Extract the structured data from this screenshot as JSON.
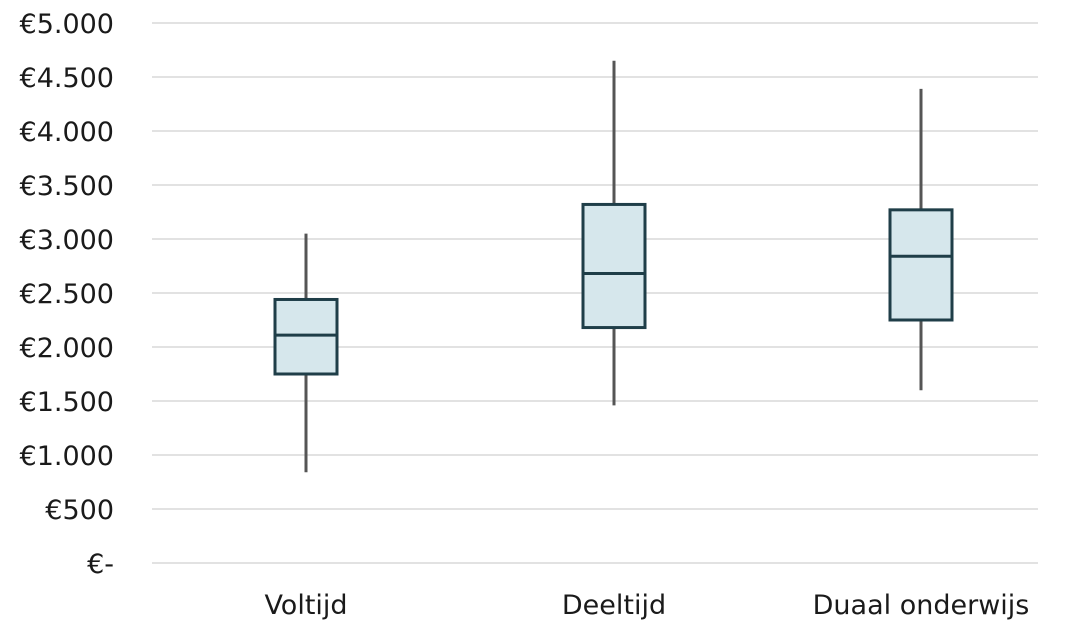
{
  "chart_data": {
    "type": "boxplot",
    "title": "",
    "xlabel": "",
    "ylabel": "",
    "ylim": [
      0,
      5000
    ],
    "grid": true,
    "y_ticks": [
      {
        "value": 0,
        "label": "€-"
      },
      {
        "value": 500,
        "label": "€500"
      },
      {
        "value": 1000,
        "label": "€1.000"
      },
      {
        "value": 1500,
        "label": "€1.500"
      },
      {
        "value": 2000,
        "label": "€2.000"
      },
      {
        "value": 2500,
        "label": "€2.500"
      },
      {
        "value": 3000,
        "label": "€3.000"
      },
      {
        "value": 3500,
        "label": "€3.500"
      },
      {
        "value": 4000,
        "label": "€4.000"
      },
      {
        "value": 4500,
        "label": "€4.500"
      },
      {
        "value": 5000,
        "label": "€5.000"
      }
    ],
    "categories": [
      "Voltijd",
      "Deeltijd",
      "Duaal onderwijs"
    ],
    "boxes": [
      {
        "category": "Voltijd",
        "min": 840,
        "q1": 1750,
        "median": 2110,
        "q3": 2440,
        "max": 3050
      },
      {
        "category": "Deeltijd",
        "min": 1460,
        "q1": 2180,
        "median": 2680,
        "q3": 3320,
        "max": 4650
      },
      {
        "category": "Duaal onderwijs",
        "min": 1600,
        "q1": 2250,
        "median": 2840,
        "q3": 3270,
        "max": 4390
      }
    ],
    "colors": {
      "box_fill": "#d6e7ec",
      "box_stroke": "#1f3e48",
      "whisker": "#555555",
      "grid": "#d9d9d9"
    }
  }
}
